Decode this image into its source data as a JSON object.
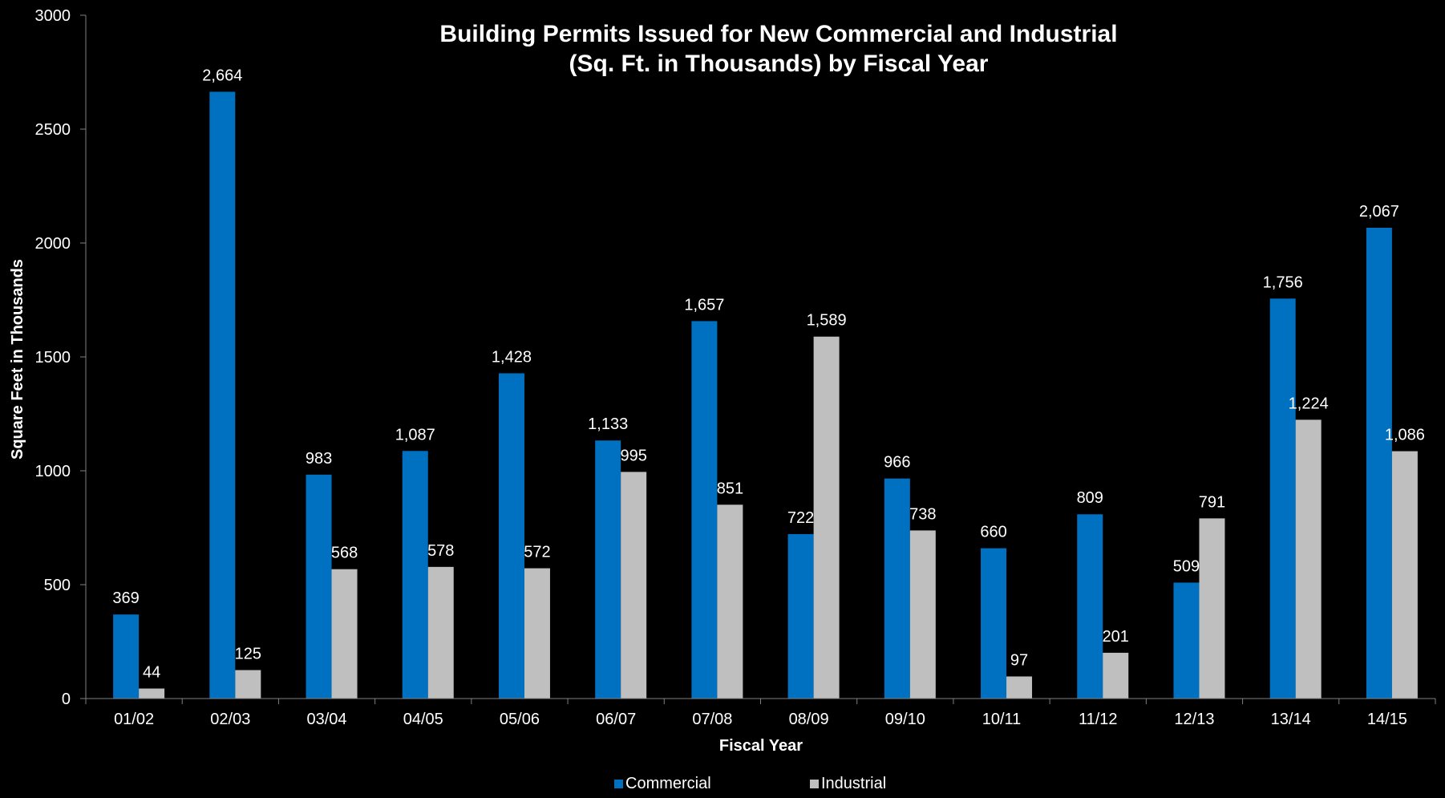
{
  "chart_data": {
    "type": "bar",
    "title_lines": [
      "Building Permits Issued for New Commercial and Industrial",
      "(Sq. Ft. in Thousands) by Fiscal Year"
    ],
    "xlabel": "Fiscal Year",
    "ylabel": "Square Feet in Thousands",
    "ylim": [
      0,
      3000
    ],
    "yticks": [
      0,
      500,
      1000,
      1500,
      2000,
      2500,
      3000
    ],
    "grid": false,
    "legend_position": "bottom-center",
    "categories": [
      "01/02",
      "02/03",
      "03/04",
      "04/05",
      "05/06",
      "06/07",
      "07/08",
      "08/09",
      "09/10",
      "10/11",
      "11/12",
      "12/13",
      "13/14",
      "14/15"
    ],
    "series": [
      {
        "name": "Commercial",
        "color": "#0070C0",
        "values": [
          369,
          2664,
          983,
          1087,
          1428,
          1133,
          1657,
          722,
          966,
          660,
          809,
          509,
          1756,
          2067
        ],
        "labels": [
          "369",
          "2,664",
          "983",
          "1,087",
          "1,428",
          "1,133",
          "1,657",
          "722",
          "966",
          "660",
          "809",
          "509",
          "1,756",
          "2,067"
        ]
      },
      {
        "name": "Industrial",
        "color": "#BFBFBF",
        "values": [
          44,
          125,
          568,
          578,
          572,
          995,
          851,
          1589,
          738,
          97,
          201,
          791,
          1224,
          1086
        ],
        "labels": [
          "44",
          "125",
          "568",
          "578",
          "572",
          "995",
          "851",
          "1,589",
          "738",
          "97",
          "201",
          "791",
          "1,224",
          "1,086"
        ]
      }
    ]
  }
}
